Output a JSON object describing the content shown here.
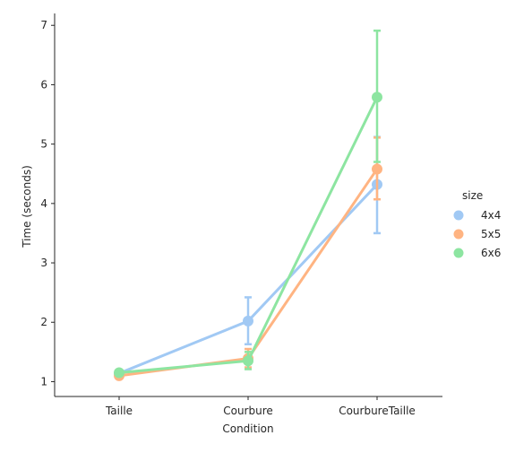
{
  "chart_data": {
    "type": "line",
    "title": "",
    "xlabel": "Condition",
    "ylabel": "Time (seconds)",
    "categories": [
      "Taille",
      "Courbure",
      "CourbureTaille"
    ],
    "ylim": [
      0.75,
      7.2
    ],
    "yticks": [
      1,
      2,
      3,
      4,
      5,
      6,
      7
    ],
    "grid": false,
    "legend": {
      "title": "size",
      "placement": "right"
    },
    "series": [
      {
        "name": "4x4",
        "color": "#a1c9f4",
        "values": [
          1.14,
          2.02,
          4.32
        ],
        "err_low": [
          1.09,
          1.63,
          3.5
        ],
        "err_high": [
          1.19,
          2.42,
          5.12
        ]
      },
      {
        "name": "5x5",
        "color": "#ffb482",
        "values": [
          1.1,
          1.39,
          4.58
        ],
        "err_low": [
          1.06,
          1.24,
          4.07
        ],
        "err_high": [
          1.14,
          1.55,
          5.11
        ]
      },
      {
        "name": "6x6",
        "color": "#8de5a1",
        "values": [
          1.15,
          1.35,
          5.79
        ],
        "err_low": [
          1.1,
          1.21,
          4.7
        ],
        "err_high": [
          1.2,
          1.5,
          6.91
        ]
      }
    ]
  }
}
